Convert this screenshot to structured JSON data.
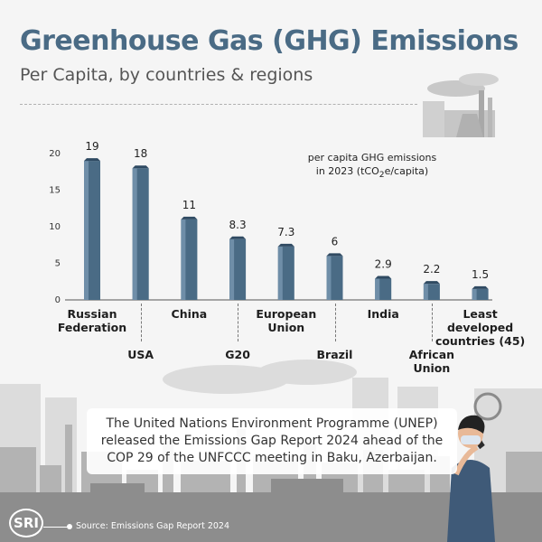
{
  "header": {
    "title": "Greenhouse Gas (GHG) Emissions",
    "subtitle": "Per Capita, by countries & regions"
  },
  "chart_data": {
    "type": "bar",
    "categories": [
      "Russian Federation",
      "USA",
      "China",
      "G20",
      "European Union",
      "Brazil",
      "India",
      "African Union",
      "Least developed countries (45)"
    ],
    "values": [
      19,
      18,
      11,
      8.3,
      7.3,
      6,
      2.9,
      2.2,
      1.5
    ],
    "value_labels": [
      "19",
      "18",
      "11",
      "8.3",
      "7.3",
      "6",
      "2.9",
      "2.2",
      "1.5"
    ],
    "ylim": [
      0,
      20
    ],
    "yticks": [
      0,
      5,
      10,
      15,
      20
    ],
    "annotation": "per capita GHG emissions in 2023 (tCO₂e/capita)",
    "bar_color": "#4a6b85",
    "legend": "none",
    "grid": false
  },
  "notice": {
    "text": "The United Nations Environment Programme (UNEP) released the Emissions Gap Report 2024 ahead of the COP 29 of the UNFCCC meeting in Baku, Azerbaijan."
  },
  "footer": {
    "logo_text": "SRI",
    "source": "Source: Emissions Gap Report 2024"
  }
}
